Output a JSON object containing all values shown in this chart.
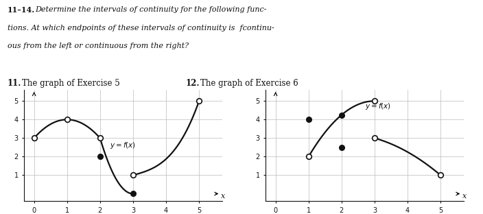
{
  "fig_bg": "#ffffff",
  "curve_color": "#111111",
  "open_dot_fc": "#ffffff",
  "open_dot_ec": "#111111",
  "filled_dot_c": "#111111",
  "dot_ms": 5.5,
  "dot_mew": 1.2,
  "grid_color": "#bbbbbb",
  "axis_color": "#111111",
  "text_color": "#111111",
  "header_lines": [
    "11–14.  Determine the intervals of continuity for the following func-",
    "tions. At which endpoints of these intervals of continuity is  fcontinu-",
    "ous from the left or continuous from the right?"
  ],
  "label11": "11.  The graph of Exercise 5",
  "label12": "12.  The graph of Exercise 6",
  "lw": 1.6
}
